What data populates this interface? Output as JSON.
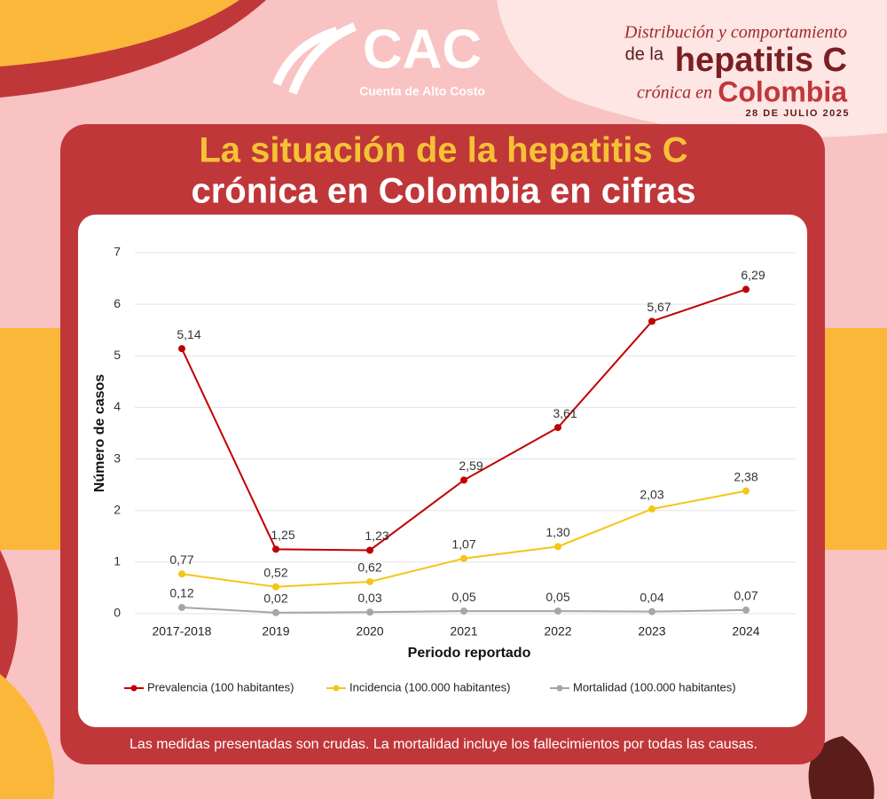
{
  "logo": {
    "name": "CAC",
    "subtitle": "Cuenta de Alto Costo"
  },
  "header": {
    "line1": "Distribución y comportamiento",
    "line2a": "de la",
    "line2b": "hepatitis C",
    "line3a": "crónica en",
    "line3b": "Colombia",
    "date": "28 DE JULIO 2025"
  },
  "title": {
    "line1": "La situación de la hepatitis C",
    "line2": "crónica en Colombia en cifras"
  },
  "footnote": "Las medidas presentadas son crudas. La mortalidad incluye los fallecimientos por todas las causas.",
  "chart_data": {
    "type": "line",
    "categories": [
      "2017-2018",
      "2019",
      "2020",
      "2021",
      "2022",
      "2023",
      "2024"
    ],
    "series": [
      {
        "name": "Prevalencia (100 habitantes)",
        "color": "#c00000",
        "values": [
          5.14,
          1.25,
          1.23,
          2.59,
          3.61,
          5.67,
          6.29
        ],
        "value_labels": [
          "5,14",
          "1,25",
          "1,23",
          "2,59",
          "3,61",
          "5,67",
          "6,29"
        ]
      },
      {
        "name": "Incidencia (100.000 habitantes)",
        "color": "#f5c518",
        "values": [
          0.77,
          0.52,
          0.62,
          1.07,
          1.3,
          2.03,
          2.38
        ],
        "value_labels": [
          "0,77",
          "0,52",
          "0,62",
          "1,07",
          "1,30",
          "2,03",
          "2,38"
        ]
      },
      {
        "name": "Mortalidad (100.000 habitantes)",
        "color": "#a6a6a6",
        "values": [
          0.12,
          0.02,
          0.03,
          0.05,
          0.05,
          0.04,
          0.07
        ],
        "value_labels": [
          "0,12",
          "0,02",
          "0,03",
          "0,05",
          "0,05",
          "0,04",
          "0,07"
        ]
      }
    ],
    "ylim": [
      0,
      7
    ],
    "yticks": [
      0,
      1,
      2,
      3,
      4,
      5,
      6,
      7
    ],
    "grid": true,
    "y_label": "Número de casos",
    "x_label": "Periodo reportado",
    "legend": "bottom"
  }
}
